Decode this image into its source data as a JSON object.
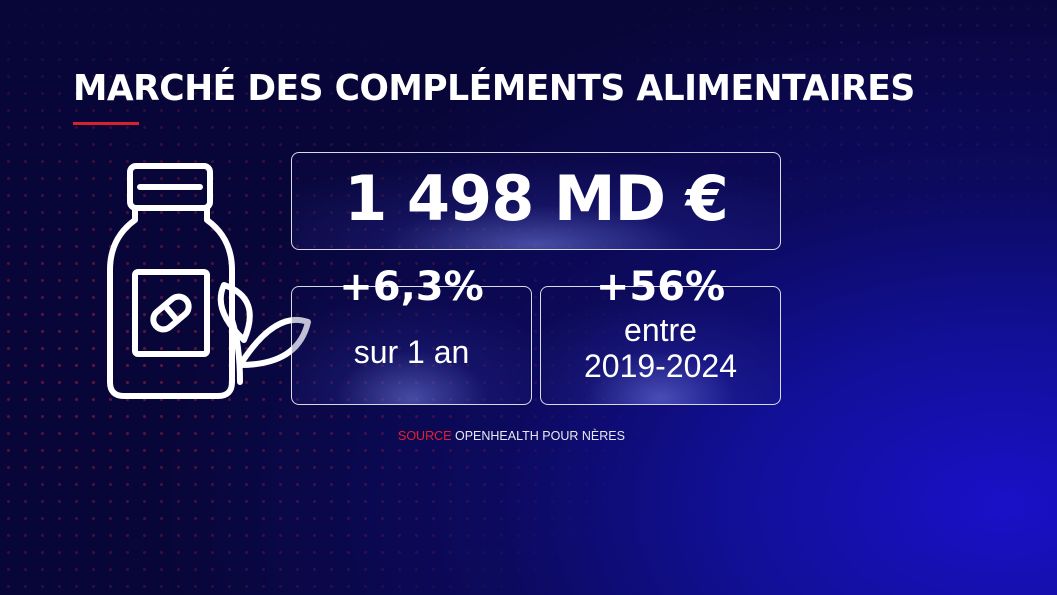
{
  "title": "MARCHÉ DES COMPLÉMENTS ALIMENTAIRES",
  "main_value": "1 498 MD €",
  "stats": [
    {
      "value": "+6,3%",
      "label_lines": [
        "sur 1 an"
      ]
    },
    {
      "value": "+56%",
      "label_lines": [
        "entre",
        "2019-2024"
      ]
    }
  ],
  "source": {
    "key": "SOURCE",
    "text": "OPENHEALTH POUR NÈRES"
  },
  "icon": "supplement-bottle-with-leaf-icon",
  "colors": {
    "accent_red": "#d8202e",
    "background_deep": "#080638",
    "background_blue": "#1a10c8",
    "text": "#ffffff"
  }
}
